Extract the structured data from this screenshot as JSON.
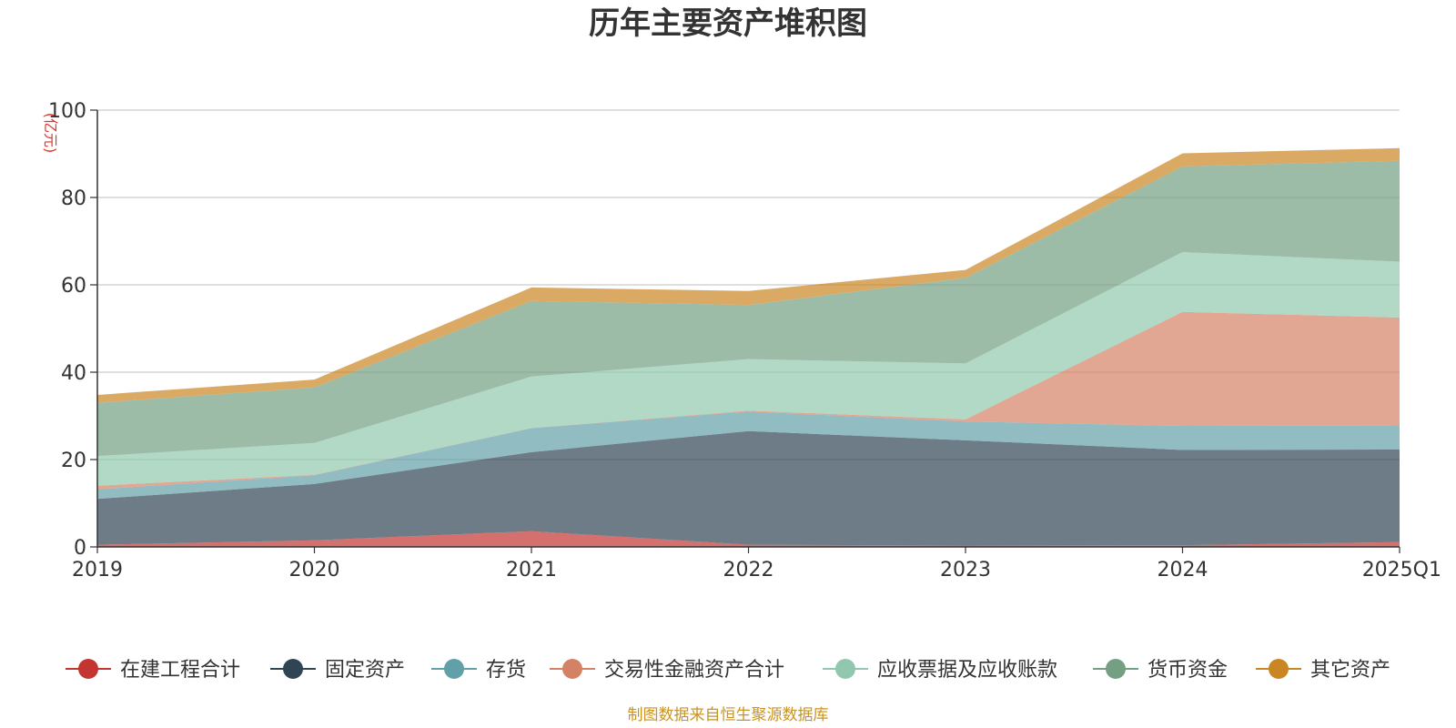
{
  "chart_data": {
    "type": "area",
    "stacked": true,
    "title": "历年主要资产堆积图",
    "unit_label": "(亿元)",
    "x": [
      "2019",
      "2020",
      "2021",
      "2022",
      "2023",
      "2024",
      "2025Q1"
    ],
    "ylim": [
      0,
      100
    ],
    "yticks": [
      "0",
      "20",
      "40",
      "60",
      "80",
      "100"
    ],
    "grid": true,
    "legend_position": "bottom",
    "series": [
      {
        "name": "在建工程合计",
        "color": "#c23531",
        "values": [
          0.5,
          1.5,
          3.6,
          0.5,
          0.3,
          0.4,
          1.1
        ]
      },
      {
        "name": "固定资产",
        "color": "#2f4554",
        "values": [
          10.5,
          12.9,
          18.1,
          26.0,
          24.1,
          21.8,
          21.2
        ]
      },
      {
        "name": "存货",
        "color": "#61a0a8",
        "values": [
          2.2,
          2.0,
          5.5,
          4.5,
          4.3,
          5.5,
          5.5
        ]
      },
      {
        "name": "交易性金融资产合计",
        "color": "#d48265",
        "values": [
          0.8,
          0.1,
          0.0,
          0.2,
          0.5,
          26.1,
          24.7
        ]
      },
      {
        "name": "应收票据及应收账款",
        "color": "#91c7ae",
        "values": [
          6.8,
          7.3,
          11.8,
          11.8,
          12.8,
          13.7,
          12.8
        ]
      },
      {
        "name": "货币资金",
        "color": "#749f83",
        "values": [
          12.2,
          12.7,
          17.3,
          12.4,
          19.6,
          19.6,
          23.1
        ]
      },
      {
        "name": "其它资产",
        "color": "#ca8622",
        "values": [
          1.8,
          1.8,
          3.1,
          3.2,
          1.8,
          3.0,
          2.9
        ]
      }
    ],
    "source_note": "制图数据来自恒生聚源数据库"
  }
}
